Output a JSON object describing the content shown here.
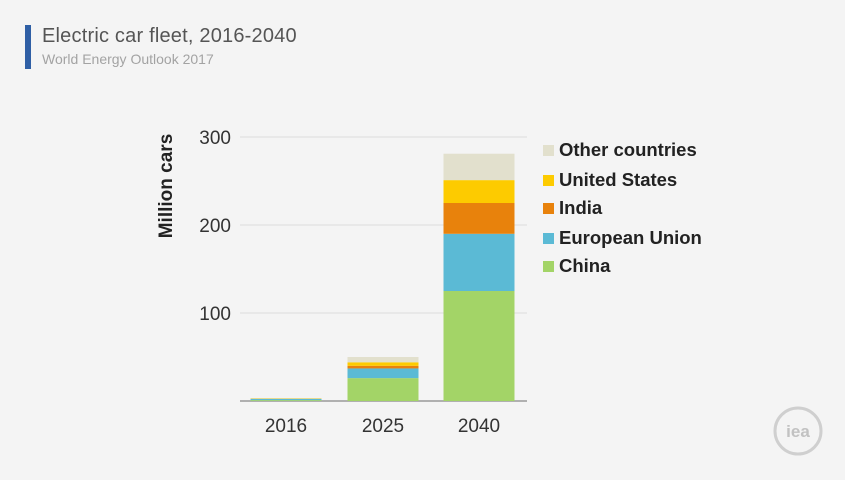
{
  "header": {
    "title": "Electric car fleet, 2016-2040",
    "subtitle": "World Energy Outlook 2017"
  },
  "logo": {
    "text": "iea"
  },
  "chart_data": {
    "type": "bar",
    "stacked": true,
    "title": "Electric car fleet, 2016-2040",
    "subtitle": "World Energy Outlook 2017",
    "xlabel": "",
    "ylabel": "Million cars",
    "ylim": [
      0,
      300
    ],
    "yticks": [
      100,
      200,
      300
    ],
    "grid": true,
    "legend_position": "right",
    "categories": [
      "2016",
      "2025",
      "2040"
    ],
    "series": [
      {
        "name": "China",
        "color": "#a3d467",
        "values": [
          1,
          26,
          125
        ]
      },
      {
        "name": "European Union",
        "color": "#5bbad5",
        "values": [
          1.5,
          11,
          65
        ]
      },
      {
        "name": "India",
        "color": "#e8820c",
        "values": [
          0,
          3,
          35
        ]
      },
      {
        "name": "United States",
        "color": "#fdcb00",
        "values": [
          0.5,
          4,
          26
        ]
      },
      {
        "name": "Other countries",
        "color": "#e2e0cd",
        "values": [
          0.3,
          6,
          30
        ]
      }
    ],
    "legend_order": [
      "Other countries",
      "United States",
      "India",
      "European Union",
      "China"
    ]
  }
}
